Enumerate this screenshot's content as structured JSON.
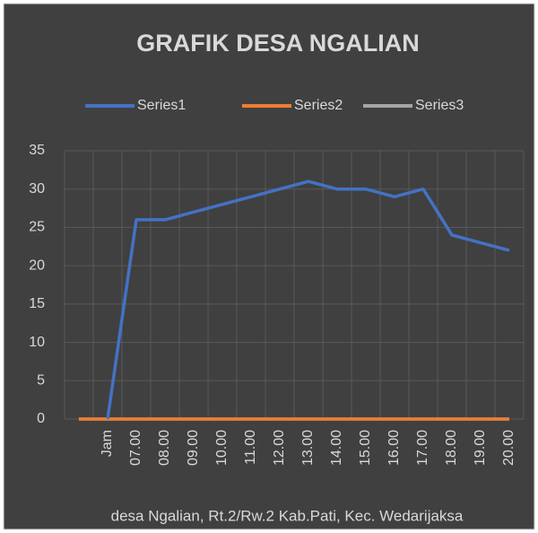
{
  "chart_data": {
    "type": "line",
    "title": "GRAFIK DESA NGALIAN",
    "x_label": "desa Ngalian, Rt.2/Rw.2 Kab.Pati, Kec. Wedarijaksa",
    "categories": [
      null,
      "Jam",
      "07.00",
      "08.00",
      "09.00",
      "10.00",
      "11.00",
      "12.00",
      "13.00",
      "14.00",
      "15.00",
      "16.00",
      "17.00",
      "18.00",
      "19.00",
      "20.00"
    ],
    "series": [
      {
        "name": "Series1",
        "color": "#4472c4",
        "values": [
          null,
          0,
          26,
          26,
          27,
          28,
          29,
          30,
          31,
          30,
          30,
          29,
          30,
          24,
          23,
          22
        ]
      },
      {
        "name": "Series2",
        "color": "#ed7d31",
        "values": [
          0,
          0,
          0,
          0,
          0,
          0,
          0,
          0,
          0,
          0,
          0,
          0,
          0,
          0,
          0,
          0
        ]
      },
      {
        "name": "Series3",
        "color": "#a5a5a5",
        "values": [
          0,
          0,
          0,
          0,
          0,
          0,
          0,
          0,
          0,
          0,
          0,
          0,
          0,
          0,
          0,
          0
        ]
      }
    ],
    "ylim": [
      0,
      35
    ],
    "yticks": [
      0,
      5,
      10,
      15,
      20,
      25,
      30,
      35
    ],
    "grid": true,
    "legend": "top"
  }
}
